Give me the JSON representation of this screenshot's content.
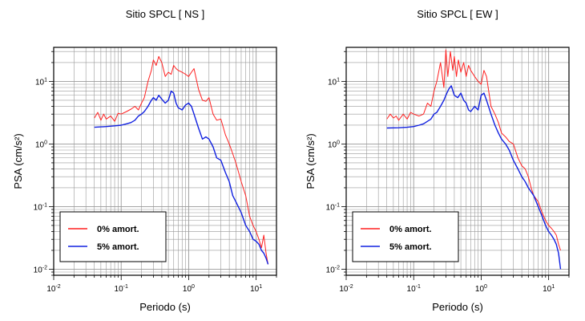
{
  "chart_data": [
    {
      "type": "line",
      "title": "Sitio SPCL [ NS ]",
      "xlabel": "Periodo (s)",
      "ylabel": "PSA (cm/s²)",
      "xscale": "log",
      "yscale": "log",
      "xlim": [
        0.01,
        20
      ],
      "ylim": [
        0.008,
        35
      ],
      "grid": true,
      "legend_position": "bottom-left",
      "xticks": [
        {
          "base": "10",
          "exp": "-2"
        },
        {
          "base": "10",
          "exp": "-1"
        },
        {
          "base": "10",
          "exp": "0"
        },
        {
          "base": "10",
          "exp": "1"
        }
      ],
      "yticks": [
        {
          "base": "10",
          "exp": "-2"
        },
        {
          "base": "10",
          "exp": "-1"
        },
        {
          "base": "10",
          "exp": "0"
        },
        {
          "base": "10",
          "exp": "1"
        }
      ],
      "series": [
        {
          "name": "0% amort.",
          "color": "#ff2020",
          "x": [
            0.04,
            0.045,
            0.05,
            0.055,
            0.06,
            0.07,
            0.08,
            0.09,
            0.1,
            0.12,
            0.14,
            0.16,
            0.18,
            0.2,
            0.22,
            0.25,
            0.28,
            0.3,
            0.33,
            0.36,
            0.4,
            0.45,
            0.5,
            0.55,
            0.6,
            0.65,
            0.7,
            0.8,
            0.9,
            1.0,
            1.1,
            1.2,
            1.4,
            1.6,
            1.8,
            2.0,
            2.3,
            2.6,
            3.0,
            3.5,
            4.0,
            4.5,
            5.0,
            5.5,
            6.0,
            7.0,
            8.0,
            9.0,
            10.0,
            11.0,
            12.0,
            13.0,
            14.0,
            15.0
          ],
          "y": [
            2.6,
            3.2,
            2.4,
            3.0,
            2.5,
            2.8,
            2.3,
            3.1,
            3.0,
            3.3,
            3.6,
            4.0,
            3.5,
            4.5,
            5.5,
            10.0,
            15.0,
            22.0,
            18.0,
            25.0,
            20.0,
            12.0,
            14.0,
            13.0,
            18.0,
            16.0,
            15.0,
            14.0,
            13.0,
            12.0,
            14.0,
            16.0,
            7.5,
            5.0,
            4.8,
            5.5,
            3.0,
            2.4,
            2.5,
            1.4,
            1.0,
            0.7,
            0.5,
            0.35,
            0.25,
            0.15,
            0.07,
            0.05,
            0.04,
            0.03,
            0.022,
            0.035,
            0.018,
            0.012
          ]
        },
        {
          "name": "5% amort.",
          "color": "#1020e0",
          "x": [
            0.04,
            0.06,
            0.08,
            0.1,
            0.12,
            0.14,
            0.16,
            0.18,
            0.2,
            0.22,
            0.25,
            0.28,
            0.3,
            0.33,
            0.36,
            0.4,
            0.45,
            0.5,
            0.55,
            0.6,
            0.65,
            0.7,
            0.8,
            0.9,
            1.0,
            1.1,
            1.2,
            1.4,
            1.6,
            1.8,
            2.0,
            2.3,
            2.6,
            3.0,
            3.5,
            4.0,
            4.5,
            5.0,
            6.0,
            7.0,
            8.0,
            9.0,
            10.0,
            11.0,
            12.0,
            13.0,
            14.0,
            15.0
          ],
          "y": [
            1.85,
            1.9,
            1.95,
            2.0,
            2.1,
            2.2,
            2.4,
            2.8,
            3.0,
            3.3,
            4.0,
            5.0,
            5.5,
            5.0,
            6.0,
            5.2,
            4.5,
            5.0,
            7.0,
            6.5,
            4.5,
            3.8,
            3.5,
            4.2,
            4.5,
            4.0,
            3.0,
            1.8,
            1.2,
            1.3,
            1.2,
            0.9,
            0.6,
            0.55,
            0.35,
            0.25,
            0.15,
            0.12,
            0.08,
            0.05,
            0.04,
            0.03,
            0.028,
            0.025,
            0.02,
            0.018,
            0.015,
            0.012
          ]
        }
      ]
    },
    {
      "type": "line",
      "title": "Sitio SPCL [ EW ]",
      "xlabel": "Periodo (s)",
      "ylabel": "PSA (cm/s²)",
      "xscale": "log",
      "yscale": "log",
      "xlim": [
        0.01,
        20
      ],
      "ylim": [
        0.008,
        35
      ],
      "grid": true,
      "legend_position": "bottom-left",
      "xticks": [
        {
          "base": "10",
          "exp": "-2"
        },
        {
          "base": "10",
          "exp": "-1"
        },
        {
          "base": "10",
          "exp": "0"
        },
        {
          "base": "10",
          "exp": "1"
        }
      ],
      "yticks": [
        {
          "base": "10",
          "exp": "-2"
        },
        {
          "base": "10",
          "exp": "-1"
        },
        {
          "base": "10",
          "exp": "0"
        },
        {
          "base": "10",
          "exp": "1"
        }
      ],
      "series": [
        {
          "name": "0% amort.",
          "color": "#ff2020",
          "x": [
            0.04,
            0.045,
            0.05,
            0.055,
            0.06,
            0.07,
            0.08,
            0.09,
            0.1,
            0.12,
            0.14,
            0.16,
            0.18,
            0.2,
            0.22,
            0.25,
            0.28,
            0.3,
            0.32,
            0.35,
            0.38,
            0.4,
            0.43,
            0.46,
            0.5,
            0.55,
            0.6,
            0.65,
            0.7,
            0.8,
            0.9,
            1.0,
            1.1,
            1.2,
            1.4,
            1.6,
            1.8,
            2.0,
            2.3,
            2.6,
            3.0,
            3.5,
            4.0,
            4.5,
            5.0,
            5.5,
            6.0,
            7.0,
            8.0,
            9.0,
            10.0,
            11.0,
            12.0,
            13.0,
            14.0,
            15.0
          ],
          "y": [
            2.5,
            3.0,
            2.6,
            2.8,
            2.4,
            3.0,
            2.5,
            3.2,
            3.0,
            2.8,
            3.0,
            4.5,
            4.0,
            7.0,
            10.0,
            20.0,
            8.0,
            32.0,
            12.0,
            30.0,
            15.0,
            25.0,
            12.0,
            22.0,
            14.0,
            20.0,
            12.0,
            18.0,
            15.0,
            12.0,
            10.0,
            9.0,
            15.0,
            12.0,
            4.0,
            3.0,
            2.2,
            1.5,
            1.3,
            1.1,
            1.0,
            0.6,
            0.45,
            0.4,
            0.3,
            0.2,
            0.15,
            0.12,
            0.08,
            0.06,
            0.05,
            0.045,
            0.04,
            0.035,
            0.025,
            0.02
          ]
        },
        {
          "name": "5% amort.",
          "color": "#1020e0",
          "x": [
            0.04,
            0.06,
            0.08,
            0.1,
            0.12,
            0.14,
            0.16,
            0.18,
            0.2,
            0.22,
            0.25,
            0.28,
            0.3,
            0.33,
            0.36,
            0.4,
            0.45,
            0.5,
            0.55,
            0.6,
            0.65,
            0.7,
            0.8,
            0.9,
            1.0,
            1.1,
            1.2,
            1.4,
            1.6,
            1.8,
            2.0,
            2.3,
            2.6,
            3.0,
            3.5,
            4.0,
            4.5,
            5.0,
            6.0,
            7.0,
            8.0,
            9.0,
            10.0,
            11.0,
            12.0,
            13.0,
            14.0,
            15.0
          ],
          "y": [
            1.8,
            1.82,
            1.85,
            1.9,
            2.0,
            2.1,
            2.3,
            2.5,
            3.0,
            3.2,
            4.0,
            5.0,
            6.0,
            7.5,
            8.5,
            6.0,
            5.5,
            6.5,
            5.0,
            4.5,
            3.5,
            3.3,
            4.0,
            3.5,
            6.0,
            6.5,
            5.0,
            3.0,
            2.0,
            1.5,
            1.2,
            1.0,
            0.8,
            0.55,
            0.4,
            0.3,
            0.25,
            0.2,
            0.15,
            0.1,
            0.07,
            0.05,
            0.04,
            0.035,
            0.03,
            0.025,
            0.018,
            0.01
          ]
        }
      ]
    }
  ]
}
